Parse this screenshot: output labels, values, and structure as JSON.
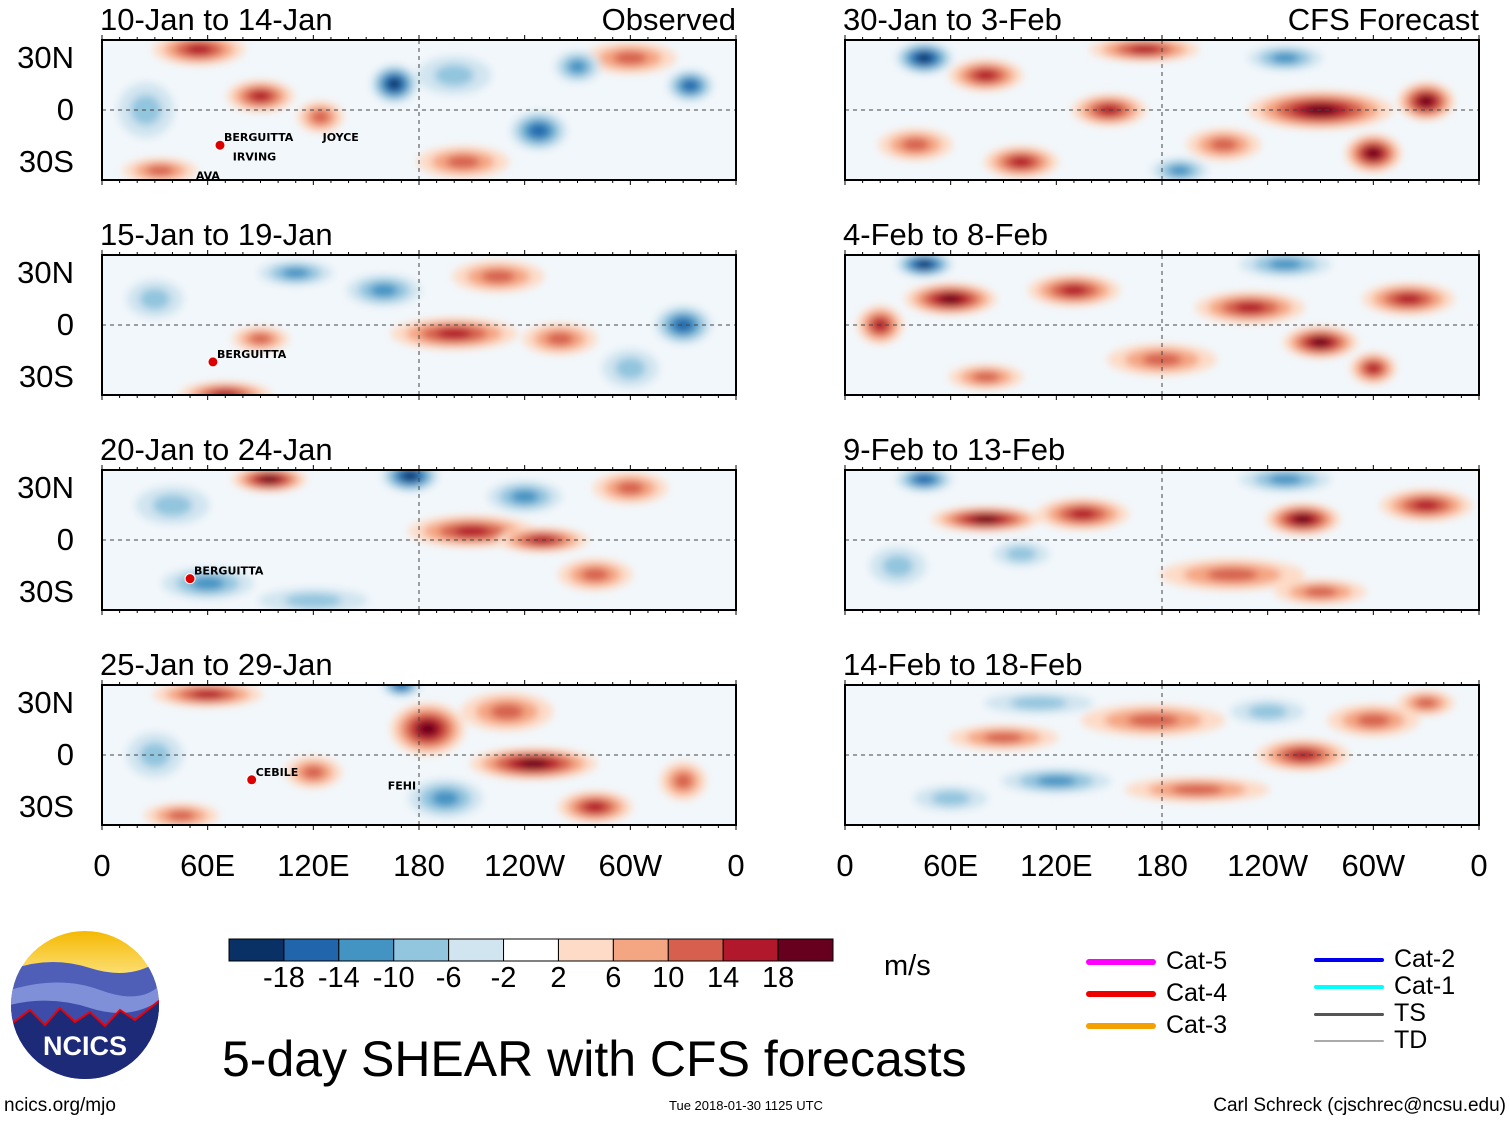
{
  "chart_data": {
    "type": "heatmap",
    "title": "5-day SHEAR with CFS forecasts",
    "units": "m/s",
    "lat_ticks": [
      "30N",
      "0",
      "30S"
    ],
    "lon_ticks": [
      "0",
      "60E",
      "120E",
      "180",
      "120W",
      "60W",
      "0"
    ],
    "colorbar": {
      "levels": [
        -18,
        -14,
        -10,
        -6,
        -2,
        2,
        6,
        10,
        14,
        18
      ],
      "labels": [
        "-18",
        "-14",
        "-10",
        "-6",
        "-2",
        "2",
        "6",
        "10",
        "14",
        "18"
      ],
      "colors": [
        "#0a3166",
        "#2166ac",
        "#4393c3",
        "#92c5de",
        "#d1e5f0",
        "#ffffff",
        "#fddbc7",
        "#f4a582",
        "#d6604d",
        "#b2182b",
        "#67001f"
      ]
    },
    "panels": [
      {
        "title": "10-Jan to 14-Jan",
        "label": "Observed",
        "col": 0,
        "row": 0,
        "anomalies": [
          [
            55,
            35,
            14,
            25,
            8
          ],
          [
            90,
            8,
            16,
            18,
            8
          ],
          [
            166,
            15,
            -18,
            12,
            10
          ],
          [
            248,
            -12,
            -14,
            15,
            10
          ],
          [
            33,
            -35,
            10,
            20,
            6
          ],
          [
            205,
            -30,
            10,
            25,
            8
          ],
          [
            334,
            14,
            -14,
            12,
            8
          ],
          [
            25,
            0,
            -8,
            15,
            15
          ],
          [
            124,
            -4,
            10,
            12,
            8
          ],
          [
            300,
            30,
            12,
            25,
            8
          ],
          [
            200,
            20,
            -8,
            20,
            10
          ],
          [
            270,
            25,
            -10,
            12,
            8
          ]
        ],
        "storms": [
          {
            "name": "BERGUITTA",
            "lon": 67,
            "lat": -18
          },
          {
            "name": "IRVING",
            "lon": 72,
            "lat": -29
          },
          {
            "name": "JOYCE",
            "lon": 123,
            "lat": -18
          },
          {
            "name": "AVA",
            "lon": 51,
            "lat": -40
          }
        ]
      },
      {
        "title": "15-Jan to 19-Jan",
        "label": "",
        "col": 0,
        "row": 1,
        "anomalies": [
          [
            90,
            -8,
            12,
            15,
            6
          ],
          [
            70,
            -40,
            16,
            25,
            6
          ],
          [
            200,
            -5,
            14,
            35,
            8
          ],
          [
            260,
            -8,
            10,
            20,
            8
          ],
          [
            160,
            20,
            -12,
            20,
            8
          ],
          [
            110,
            30,
            -12,
            20,
            6
          ],
          [
            330,
            0,
            -14,
            15,
            10
          ],
          [
            30,
            15,
            -8,
            15,
            10
          ],
          [
            225,
            28,
            10,
            25,
            8
          ],
          [
            300,
            -25,
            -8,
            15,
            10
          ]
        ],
        "storms": [
          {
            "name": "BERGUITTA",
            "lon": 63,
            "lat": -19
          }
        ]
      },
      {
        "title": "20-Jan to 24-Jan",
        "label": "",
        "col": 0,
        "row": 2,
        "anomalies": [
          [
            95,
            35,
            18,
            20,
            6
          ],
          [
            175,
            37,
            -18,
            15,
            8
          ],
          [
            210,
            5,
            14,
            35,
            8
          ],
          [
            250,
            0,
            16,
            25,
            6
          ],
          [
            280,
            -20,
            10,
            20,
            8
          ],
          [
            300,
            30,
            10,
            20,
            8
          ],
          [
            60,
            -25,
            -10,
            25,
            8
          ],
          [
            120,
            -35,
            -8,
            30,
            6
          ],
          [
            40,
            20,
            -6,
            20,
            10
          ],
          [
            240,
            25,
            -10,
            20,
            8
          ]
        ],
        "storms": [
          {
            "name": "BERGUITTA",
            "lon": 50,
            "lat": -20
          }
        ]
      },
      {
        "title": "25-Jan to 29-Jan",
        "label": "",
        "col": 0,
        "row": 3,
        "anomalies": [
          [
            60,
            35,
            16,
            30,
            6
          ],
          [
            185,
            15,
            18,
            20,
            14
          ],
          [
            245,
            -5,
            18,
            35,
            8
          ],
          [
            230,
            25,
            12,
            25,
            10
          ],
          [
            280,
            -30,
            16,
            20,
            8
          ],
          [
            195,
            -25,
            -10,
            20,
            10
          ],
          [
            170,
            40,
            -16,
            10,
            5
          ],
          [
            30,
            0,
            -8,
            15,
            12
          ],
          [
            120,
            -10,
            10,
            15,
            8
          ],
          [
            45,
            -35,
            10,
            20,
            6
          ],
          [
            330,
            -15,
            10,
            12,
            10
          ]
        ],
        "storms": [
          {
            "name": "CEBILE",
            "lon": 85,
            "lat": -12
          },
          {
            "name": "FEHI",
            "lon": 160,
            "lat": -20
          }
        ]
      },
      {
        "title": "30-Jan to 3-Feb",
        "label": "CFS Forecast",
        "col": 1,
        "row": 0,
        "anomalies": [
          [
            45,
            30,
            -18,
            15,
            8
          ],
          [
            80,
            20,
            16,
            20,
            8
          ],
          [
            170,
            35,
            14,
            30,
            6
          ],
          [
            150,
            0,
            14,
            20,
            8
          ],
          [
            270,
            0,
            20,
            40,
            10
          ],
          [
            300,
            -25,
            18,
            15,
            10
          ],
          [
            330,
            5,
            18,
            15,
            10
          ],
          [
            40,
            -20,
            12,
            20,
            8
          ],
          [
            100,
            -30,
            14,
            20,
            8
          ],
          [
            215,
            -20,
            12,
            20,
            8
          ],
          [
            190,
            -35,
            -10,
            15,
            6
          ],
          [
            250,
            30,
            -10,
            20,
            6
          ]
        ],
        "storms": []
      },
      {
        "title": "4-Feb to 8-Feb",
        "label": "",
        "col": 1,
        "row": 1,
        "anomalies": [
          [
            45,
            35,
            -18,
            15,
            6
          ],
          [
            60,
            15,
            18,
            25,
            8
          ],
          [
            130,
            20,
            14,
            25,
            8
          ],
          [
            230,
            10,
            14,
            30,
            8
          ],
          [
            270,
            -10,
            20,
            20,
            8
          ],
          [
            320,
            15,
            14,
            25,
            8
          ],
          [
            250,
            35,
            -12,
            25,
            6
          ],
          [
            180,
            -20,
            12,
            30,
            8
          ],
          [
            80,
            -30,
            10,
            20,
            6
          ],
          [
            300,
            -25,
            16,
            12,
            8
          ],
          [
            20,
            0,
            16,
            12,
            10
          ]
        ],
        "storms": []
      },
      {
        "title": "9-Feb to 13-Feb",
        "label": "",
        "col": 1,
        "row": 2,
        "anomalies": [
          [
            45,
            35,
            -16,
            15,
            6
          ],
          [
            80,
            12,
            18,
            30,
            6
          ],
          [
            135,
            15,
            14,
            25,
            8
          ],
          [
            260,
            12,
            18,
            20,
            8
          ],
          [
            330,
            20,
            14,
            25,
            8
          ],
          [
            250,
            35,
            -12,
            25,
            6
          ],
          [
            100,
            -8,
            -8,
            15,
            6
          ],
          [
            220,
            -20,
            10,
            40,
            8
          ],
          [
            270,
            -30,
            10,
            25,
            6
          ],
          [
            30,
            -15,
            -6,
            15,
            10
          ]
        ],
        "storms": []
      },
      {
        "title": "14-Feb to 18-Feb",
        "label": "",
        "col": 1,
        "row": 3,
        "anomalies": [
          [
            90,
            10,
            12,
            30,
            6
          ],
          [
            175,
            20,
            10,
            40,
            8
          ],
          [
            260,
            0,
            14,
            25,
            8
          ],
          [
            300,
            20,
            12,
            25,
            8
          ],
          [
            330,
            30,
            12,
            15,
            6
          ],
          [
            240,
            25,
            -8,
            20,
            6
          ],
          [
            120,
            -15,
            -10,
            30,
            6
          ],
          [
            200,
            -20,
            10,
            40,
            6
          ],
          [
            110,
            30,
            -8,
            30,
            5
          ],
          [
            60,
            -25,
            -6,
            20,
            6
          ]
        ],
        "storms": []
      }
    ]
  },
  "legend": [
    {
      "label": "Cat-5",
      "color": "#ff00ff",
      "width": 6
    },
    {
      "label": "Cat-4",
      "color": "#ee0000",
      "width": 6
    },
    {
      "label": "Cat-3",
      "color": "#f4a000",
      "width": 6
    },
    {
      "label": "Cat-2",
      "color": "#0000ee",
      "width": 4
    },
    {
      "label": "Cat-1",
      "color": "#00ffff",
      "width": 4
    },
    {
      "label": "TS",
      "color": "#555555",
      "width": 3
    },
    {
      "label": "TD",
      "color": "#aaaaaa",
      "width": 2
    }
  ],
  "footer": {
    "title": "5-day SHEAR with CFS forecasts",
    "units": "m/s",
    "url": "ncics.org/mjo",
    "timestamp": "Tue 2018-01-30 1125 UTC",
    "author": "Carl Schreck (cjschrec@ncsu.edu)",
    "logo_text": "NCICS"
  }
}
